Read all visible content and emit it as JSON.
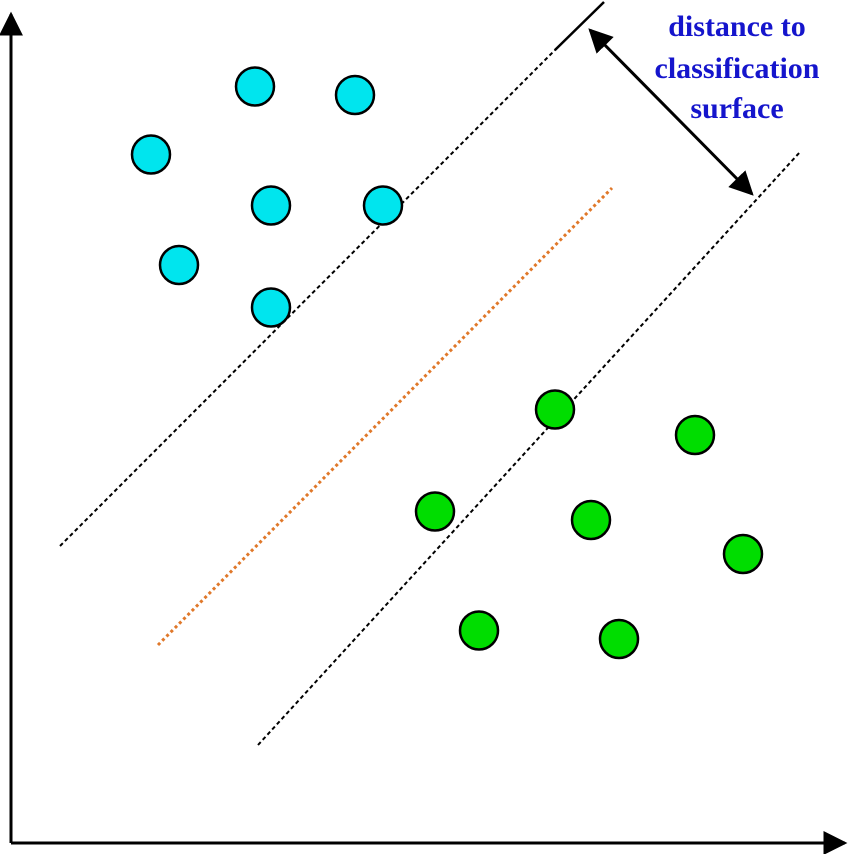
{
  "annotation": {
    "lines": [
      "distance to",
      "classification",
      "surface"
    ],
    "color": "#1515cc"
  },
  "colors": {
    "class_a": "#00e5ee",
    "class_b": "#00dd00",
    "outline": "#000000",
    "margin_line": "#000000",
    "decision_line": "#e0782a"
  },
  "points": {
    "class_a": [
      {
        "x": 3.5,
        "y": 8.1
      },
      {
        "x": 6.1,
        "y": 8.9
      },
      {
        "x": 8.6,
        "y": 8.8
      },
      {
        "x": 6.5,
        "y": 7.5
      },
      {
        "x": 9.3,
        "y": 7.5
      },
      {
        "x": 4.2,
        "y": 6.8
      },
      {
        "x": 6.5,
        "y": 6.3
      }
    ],
    "class_b": [
      {
        "x": 13.6,
        "y": 5.1
      },
      {
        "x": 17.1,
        "y": 4.8
      },
      {
        "x": 10.6,
        "y": 3.9
      },
      {
        "x": 14.5,
        "y": 3.8
      },
      {
        "x": 18.3,
        "y": 3.4
      },
      {
        "x": 11.7,
        "y": 2.5
      },
      {
        "x": 15.2,
        "y": 2.4
      }
    ]
  }
}
